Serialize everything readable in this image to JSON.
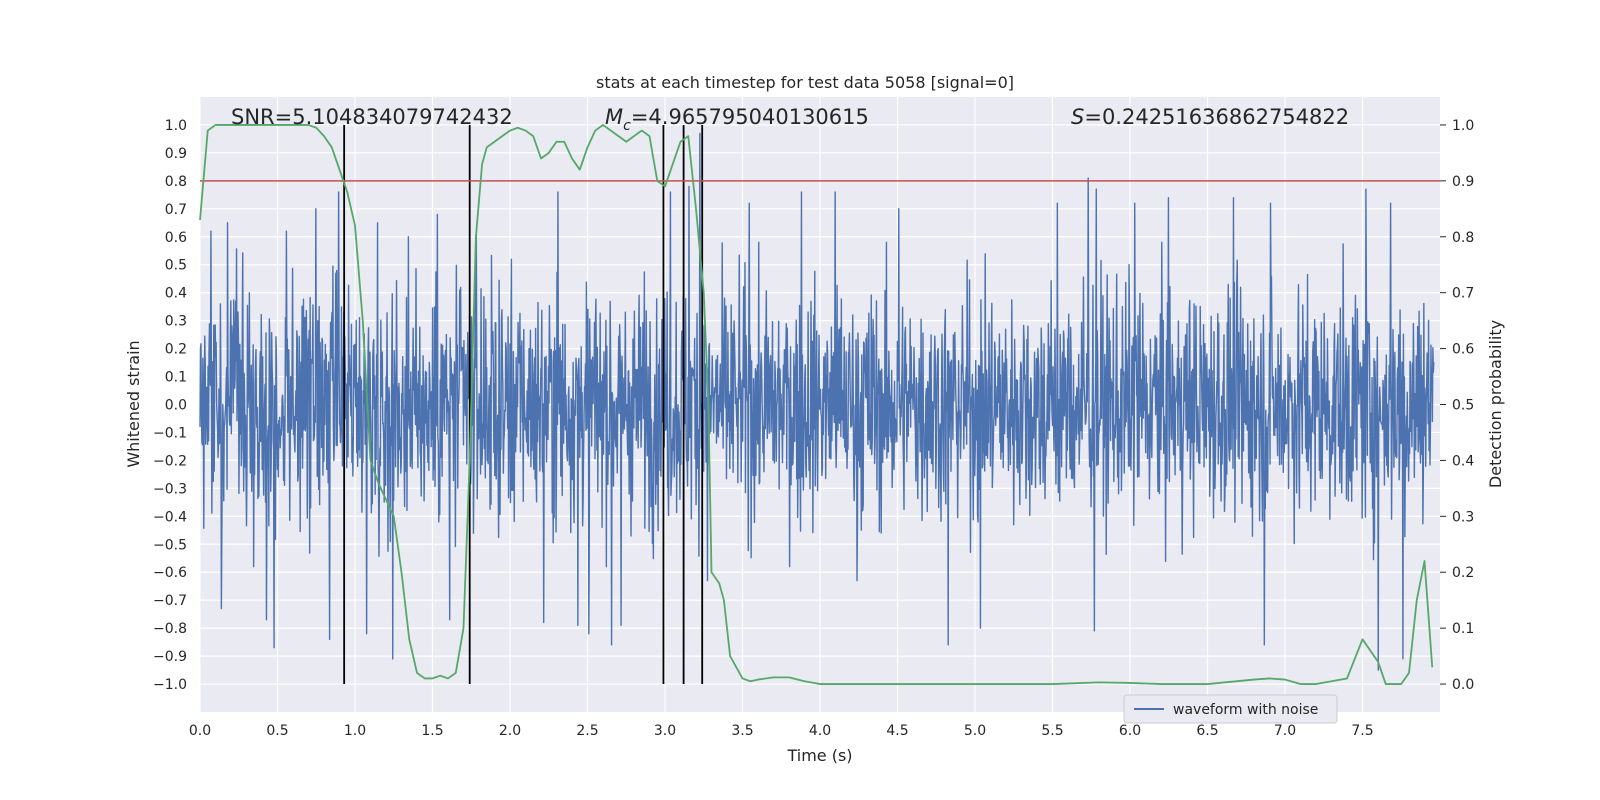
{
  "chart_data": {
    "type": "line",
    "title": "stats at each timestep for test data 5058 [signal=0]",
    "xlabel": "Time (s)",
    "ylabel_left": "Whitened strain",
    "ylabel_right": "Detection probability",
    "xlim": [
      0.0,
      8.0
    ],
    "ylim_left": [
      -1.1,
      1.1
    ],
    "ylim_right": [
      -0.05,
      1.05
    ],
    "x_ticks": [
      "0.0",
      "0.5",
      "1.0",
      "1.5",
      "2.0",
      "2.5",
      "3.0",
      "3.5",
      "4.0",
      "4.5",
      "5.0",
      "5.5",
      "6.0",
      "6.5",
      "7.0",
      "7.5"
    ],
    "y_ticks_left": [
      "1.0",
      "0.9",
      "0.8",
      "0.7",
      "0.6",
      "0.5",
      "0.4",
      "0.3",
      "0.2",
      "0.1",
      "0.0",
      "−0.1",
      "−0.2",
      "−0.3",
      "−0.4",
      "−0.5",
      "−0.6",
      "−0.7",
      "−0.8",
      "−0.9",
      "−1.0"
    ],
    "y_ticks_right": [
      "1.0",
      "0.9",
      "0.8",
      "0.7",
      "0.6",
      "0.5",
      "0.4",
      "0.3",
      "0.2",
      "0.1",
      "0.0"
    ],
    "grid": true,
    "legend": {
      "placement": "lower-right",
      "entries": [
        "waveform with noise"
      ]
    },
    "annotations": {
      "snr": "SNR=5.104834079742432",
      "mc_symbol": "M",
      "mc_subscript": "c",
      "mc_value": "=4.965795040130615",
      "s_symbol": "S",
      "s_value": "=0.24251636862754822"
    },
    "threshold": {
      "axis": "right",
      "value": 0.9,
      "color": "#c44e52"
    },
    "vertical_lines": [
      0.93,
      1.74,
      2.99,
      3.12,
      3.24
    ],
    "waveform": {
      "name": "waveform with noise",
      "color": "#4c72b0",
      "approx_max": 0.97,
      "approx_min": -1.0,
      "peaks": [
        [
          0.07,
          0.62
        ],
        [
          0.14,
          0.72
        ],
        [
          0.18,
          0.65
        ],
        [
          0.43,
          0.6
        ],
        [
          0.56,
          0.62
        ],
        [
          0.75,
          0.7
        ],
        [
          0.9,
          0.76
        ],
        [
          1.15,
          0.65
        ],
        [
          1.25,
          0.62
        ],
        [
          1.35,
          0.6
        ],
        [
          1.54,
          0.68
        ],
        [
          1.79,
          0.62
        ],
        [
          2.32,
          0.76
        ],
        [
          2.73,
          0.7
        ],
        [
          3.05,
          0.76
        ],
        [
          3.17,
          0.78
        ],
        [
          3.24,
          0.97
        ],
        [
          3.56,
          0.72
        ],
        [
          3.9,
          0.76
        ],
        [
          4.12,
          0.76
        ],
        [
          4.53,
          0.7
        ],
        [
          5.56,
          0.72
        ],
        [
          5.76,
          0.81
        ],
        [
          5.81,
          0.77
        ],
        [
          6.06,
          0.72
        ],
        [
          6.28,
          0.74
        ],
        [
          6.7,
          0.74
        ],
        [
          6.94,
          0.72
        ],
        [
          7.56,
          0.77
        ],
        [
          7.64,
          0.83
        ],
        [
          7.72,
          0.72
        ]
      ],
      "troughs": [
        [
          0.14,
          -0.73
        ],
        [
          0.43,
          -0.77
        ],
        [
          0.48,
          -0.87
        ],
        [
          0.84,
          -0.84
        ],
        [
          1.08,
          -0.82
        ],
        [
          1.25,
          -0.91
        ],
        [
          1.62,
          -0.77
        ],
        [
          2.23,
          -0.78
        ],
        [
          2.45,
          -0.79
        ],
        [
          2.52,
          -0.82
        ],
        [
          2.67,
          -0.86
        ],
        [
          2.73,
          -0.79
        ],
        [
          3.29,
          -0.63
        ],
        [
          4.26,
          -0.63
        ],
        [
          4.85,
          -0.86
        ],
        [
          5.06,
          -0.8
        ],
        [
          5.8,
          -0.81
        ],
        [
          6.9,
          -0.86
        ],
        [
          7.64,
          -0.95
        ],
        [
          7.8,
          -0.91
        ]
      ]
    },
    "probability": {
      "name": "detection probability",
      "color": "#55a868",
      "x": [
        0.0,
        0.05,
        0.1,
        0.2,
        0.3,
        0.4,
        0.5,
        0.6,
        0.7,
        0.75,
        0.8,
        0.85,
        0.9,
        0.95,
        1.0,
        1.05,
        1.1,
        1.15,
        1.2,
        1.25,
        1.3,
        1.35,
        1.4,
        1.45,
        1.5,
        1.55,
        1.6,
        1.65,
        1.7,
        1.74,
        1.78,
        1.82,
        1.85,
        1.9,
        2.0,
        2.05,
        2.1,
        2.15,
        2.2,
        2.25,
        2.3,
        2.35,
        2.4,
        2.45,
        2.5,
        2.55,
        2.6,
        2.65,
        2.7,
        2.75,
        2.8,
        2.85,
        2.9,
        2.95,
        3.0,
        3.05,
        3.1,
        3.15,
        3.2,
        3.25,
        3.28,
        3.3,
        3.35,
        3.38,
        3.42,
        3.5,
        3.55,
        3.6,
        3.7,
        3.8,
        3.9,
        4.0,
        4.05,
        4.1,
        4.2,
        4.3,
        4.5,
        4.8,
        5.0,
        5.5,
        5.8,
        6.0,
        6.2,
        6.5,
        6.8,
        6.9,
        7.0,
        7.1,
        7.2,
        7.3,
        7.4,
        7.5,
        7.55,
        7.6,
        7.65,
        7.7,
        7.75,
        7.8,
        7.85,
        7.9,
        7.95
      ],
      "y": [
        0.83,
        0.99,
        1.0,
        1.0,
        1.0,
        1.0,
        1.0,
        1.0,
        1.0,
        0.995,
        0.98,
        0.96,
        0.92,
        0.88,
        0.82,
        0.65,
        0.4,
        0.36,
        0.33,
        0.3,
        0.2,
        0.08,
        0.02,
        0.01,
        0.01,
        0.015,
        0.01,
        0.02,
        0.1,
        0.4,
        0.8,
        0.93,
        0.96,
        0.97,
        0.99,
        0.995,
        0.99,
        0.98,
        0.94,
        0.95,
        0.97,
        0.97,
        0.94,
        0.92,
        0.96,
        0.99,
        1.0,
        0.99,
        0.98,
        0.97,
        0.98,
        0.99,
        0.98,
        0.9,
        0.89,
        0.93,
        0.97,
        0.98,
        0.85,
        0.7,
        0.5,
        0.2,
        0.18,
        0.15,
        0.05,
        0.01,
        0.005,
        0.008,
        0.012,
        0.012,
        0.005,
        0.0,
        0.0,
        0.0,
        0.0,
        0.0,
        0.0,
        0.0,
        0.0,
        0.0,
        0.003,
        0.002,
        0.0,
        0.0,
        0.008,
        0.01,
        0.008,
        0.0,
        0.0,
        0.005,
        0.01,
        0.08,
        0.06,
        0.04,
        0.0,
        0.0,
        0.0,
        0.02,
        0.15,
        0.22,
        0.03
      ]
    }
  }
}
